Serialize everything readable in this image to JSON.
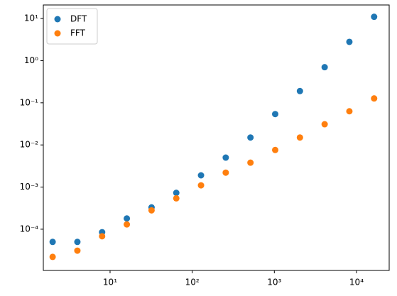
{
  "chart_data": {
    "type": "scatter",
    "log_x": true,
    "log_y": true,
    "grid": false,
    "legend": "upper left",
    "x": [
      2,
      4,
      8,
      16,
      32,
      64,
      128,
      256,
      512,
      1024,
      2048,
      4096,
      8192,
      16384
    ],
    "series": [
      {
        "name": "DFT",
        "color": "#1f77b4",
        "values": [
          5e-05,
          5e-05,
          8.5e-05,
          0.00018,
          0.00033,
          0.00073,
          0.0019,
          0.005,
          0.015,
          0.054,
          0.19,
          0.7,
          2.8,
          11
        ]
      },
      {
        "name": "FFT",
        "color": "#ff7f0e",
        "values": [
          2.2e-05,
          3.1e-05,
          6.8e-05,
          0.00013,
          0.00028,
          0.00054,
          0.0011,
          0.0022,
          0.0038,
          0.0076,
          0.015,
          0.031,
          0.063,
          0.127
        ]
      }
    ],
    "xlim": [
      1.54,
      25000
    ],
    "ylim": [
      1.05e-05,
      21
    ],
    "xticks": [
      {
        "value": 10,
        "label": "10¹"
      },
      {
        "value": 100,
        "label": "10²"
      },
      {
        "value": 1000,
        "label": "10³"
      },
      {
        "value": 10000,
        "label": "10⁴"
      }
    ],
    "yticks": [
      {
        "value": 0.0001,
        "label": "10⁻⁴"
      },
      {
        "value": 0.001,
        "label": "10⁻³"
      },
      {
        "value": 0.01,
        "label": "10⁻²"
      },
      {
        "value": 0.1,
        "label": "10⁻¹"
      },
      {
        "value": 1,
        "label": "10⁰"
      },
      {
        "value": 10,
        "label": "10¹"
      }
    ]
  }
}
